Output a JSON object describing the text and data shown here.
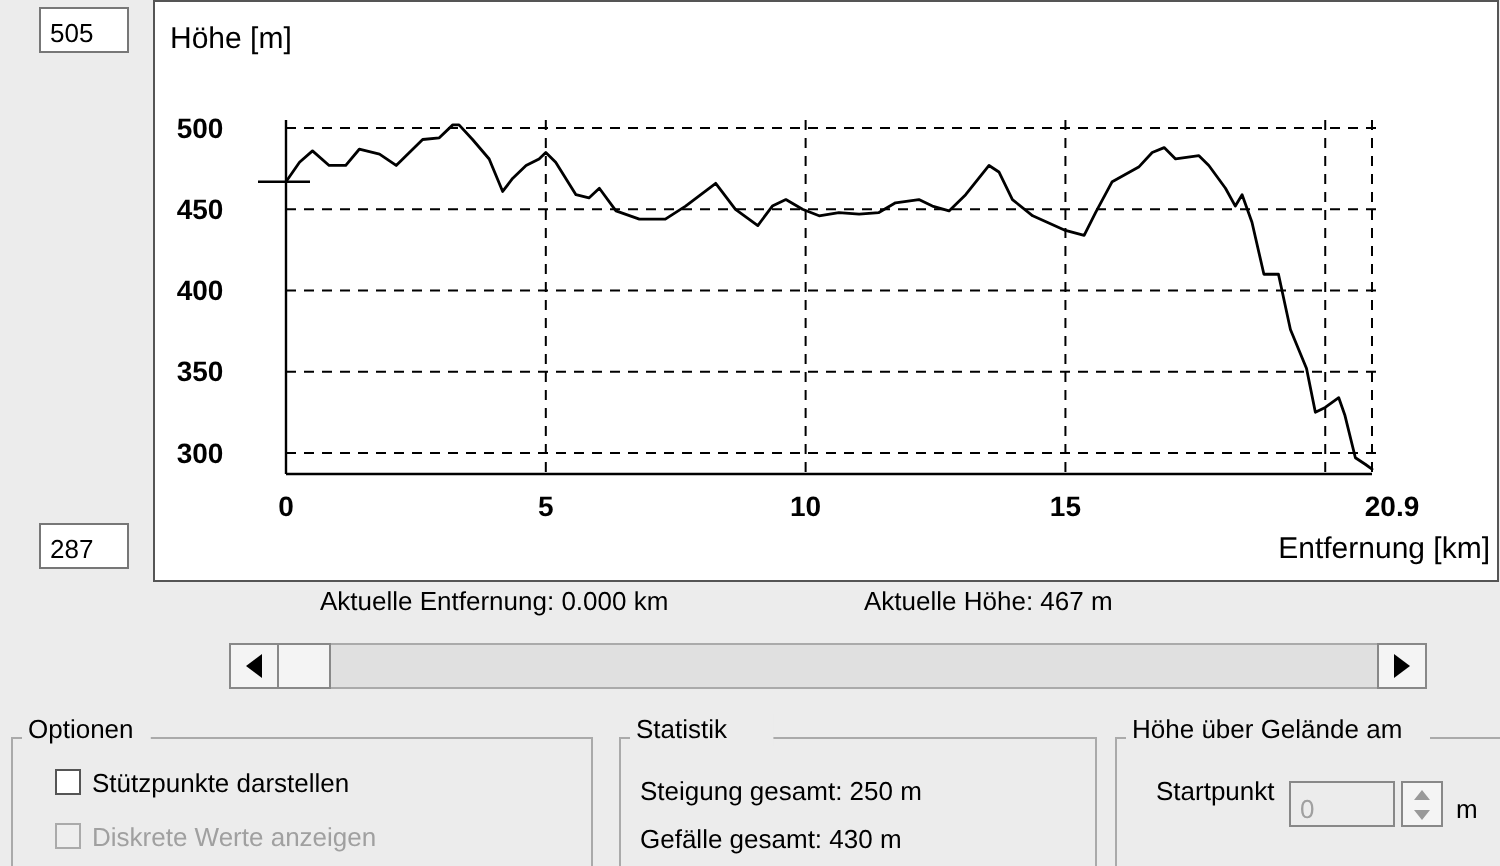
{
  "chart_data": {
    "type": "line",
    "ylabel": "Höhe [m]",
    "xlabel": "Entfernung [km]",
    "xlim": [
      0,
      20.9
    ],
    "ylim": [
      287,
      505
    ],
    "xticks": [
      0,
      5,
      10,
      15,
      {
        "value": 20,
        "label": null
      },
      20.9
    ],
    "yticks": [
      300,
      350,
      400,
      450,
      500
    ],
    "grid": true,
    "marker": "none",
    "line_style": "solid",
    "series": [
      {
        "color": "#000000",
        "x": [
          0,
          0.26,
          0.51,
          0.83,
          1.15,
          1.41,
          1.8,
          2.12,
          2.63,
          2.95,
          3.21,
          3.33,
          3.59,
          3.91,
          4.17,
          4.36,
          4.62,
          4.87,
          5.0,
          5.19,
          5.58,
          5.83,
          6.03,
          6.35,
          6.8,
          7.3,
          7.69,
          8.27,
          8.65,
          9.08,
          9.36,
          9.62,
          9.94,
          10.26,
          10.64,
          11.03,
          11.41,
          11.73,
          12.18,
          12.44,
          12.76,
          13.08,
          13.53,
          13.72,
          13.98,
          14.37,
          15.0,
          15.36,
          15.58,
          15.9,
          16.41,
          16.67,
          16.9,
          17.12,
          17.57,
          17.76,
          18.08,
          18.27,
          18.4,
          18.59,
          18.82,
          19.1,
          19.33,
          19.64,
          19.81,
          20.0,
          20.26,
          20.38,
          20.58,
          20.77,
          20.9
        ],
        "values": [
          467,
          479,
          486,
          477,
          477,
          487,
          484,
          477,
          493,
          494,
          502,
          502,
          493,
          481,
          461,
          469,
          477,
          481,
          485,
          479,
          459,
          457,
          463,
          449,
          444,
          444,
          452,
          466,
          450,
          440,
          452,
          456,
          450,
          446,
          448,
          447,
          448,
          454,
          456,
          452,
          449,
          459,
          477,
          473,
          456,
          446,
          437,
          434,
          448,
          467,
          476,
          485,
          488,
          481,
          483,
          477,
          463,
          452,
          459,
          442,
          410,
          410,
          376,
          352,
          325,
          328,
          334,
          323,
          297,
          293,
          290
        ]
      }
    ],
    "annotations": [
      "Aktuelle Entfernung: 0.000 km",
      "Aktuelle Höhe: 467 m",
      "Optionen",
      "Stützpunkte darstellen",
      "Diskrete Werte anzeigen",
      "Statistik",
      "Steigung gesamt: 250 m",
      "Gefälle gesamt: 430 m",
      "Höhe über Gelände am",
      "Startpunkt",
      "0",
      "m",
      "505",
      "287"
    ]
  }
}
